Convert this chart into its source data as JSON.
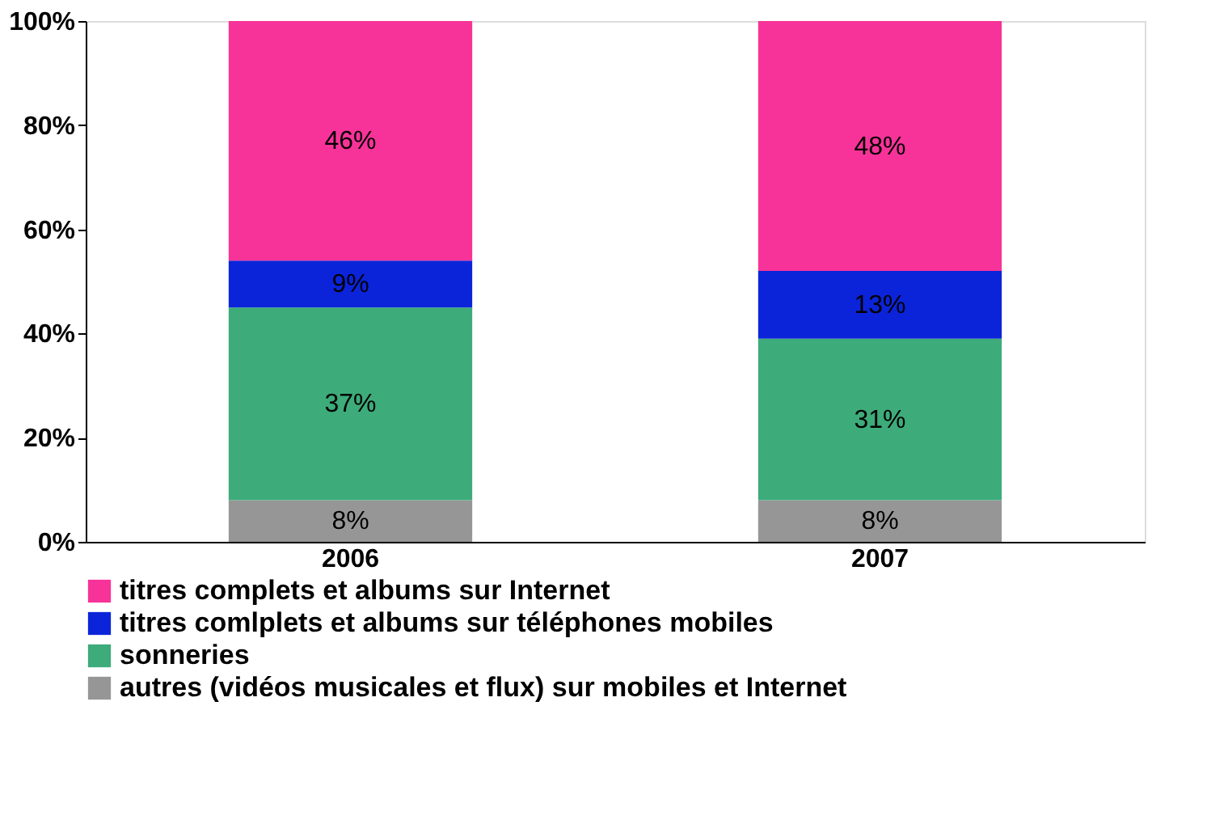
{
  "chart_data": {
    "type": "bar",
    "stacked": true,
    "categories": [
      "2006",
      "2007"
    ],
    "series": [
      {
        "name": "autres (vidéos musicales et flux) sur mobiles et Internet",
        "color": "#969696",
        "values": [
          8,
          8
        ],
        "value_labels": [
          "8%",
          "8%"
        ]
      },
      {
        "name": "sonneries",
        "color": "#3dab7a",
        "values": [
          37,
          31
        ],
        "value_labels": [
          "37%",
          "31%"
        ]
      },
      {
        "name": "titres comlplets et albums sur téléphones mobiles",
        "color": "#0b24d9",
        "values": [
          9,
          13
        ],
        "value_labels": [
          "9%",
          "13%"
        ]
      },
      {
        "name": "titres complets et albums sur Internet",
        "color": "#f7339a",
        "values": [
          46,
          48
        ],
        "value_labels": [
          "46%",
          "48%"
        ]
      }
    ],
    "ylim": [
      0,
      100
    ],
    "yticks": [
      {
        "value": 0,
        "label": "0%"
      },
      {
        "value": 20,
        "label": "20%"
      },
      {
        "value": 40,
        "label": "40%"
      },
      {
        "value": 60,
        "label": "60%"
      },
      {
        "value": 80,
        "label": "80%"
      },
      {
        "value": 100,
        "label": "100%"
      }
    ],
    "grid": false,
    "legend": "bottom"
  }
}
